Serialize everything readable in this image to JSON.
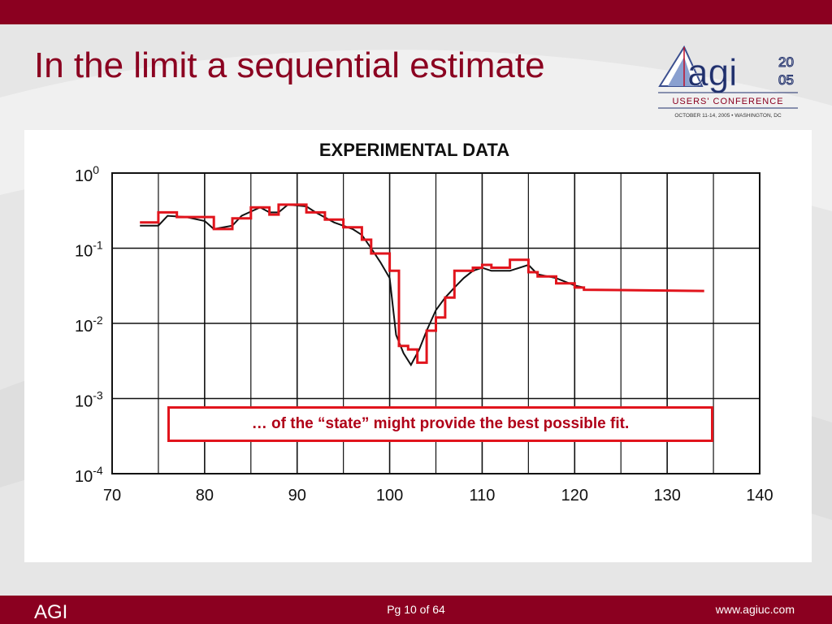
{
  "slide": {
    "title": "In the limit a sequential estimate",
    "callout": "… of the “state” might provide the best possible fit."
  },
  "logo": {
    "name": "agi",
    "year_top": "20",
    "year_bottom": "05",
    "line1": "USERS' CONFERENCE",
    "line2": "OCTOBER 11-14, 2005 • WASHINGTON, DC"
  },
  "footer": {
    "left": "AGI",
    "center": "Pg 10 of 64",
    "right": "www.agiuc.com"
  },
  "colors": {
    "brand": "#8b0020",
    "fit_line": "#e1141c",
    "data_line": "#111111"
  },
  "chart_data": {
    "type": "line",
    "title": "EXPERIMENTAL DATA",
    "xlim": [
      70,
      140
    ],
    "ylim_log10": [
      -4,
      0
    ],
    "y_scale": "log",
    "grid": true,
    "x_ticks": [
      "70",
      "80",
      "90",
      "100",
      "110",
      "120",
      "130",
      "140"
    ],
    "y_ticks": [
      {
        "base": "10",
        "exp": "0"
      },
      {
        "base": "10",
        "exp": "-1"
      },
      {
        "base": "10",
        "exp": "-2"
      },
      {
        "base": "10",
        "exp": "-3"
      },
      {
        "base": "10",
        "exp": "-4"
      }
    ],
    "series": [
      {
        "role": "experimental data",
        "x": [
          73,
          75,
          76,
          78,
          80,
          81,
          83,
          84,
          86,
          87,
          88,
          89,
          91,
          92,
          94,
          96,
          97,
          98,
          99,
          100,
          100.7,
          101.5,
          102.3,
          103.2,
          104,
          105,
          106,
          107,
          108,
          109,
          110,
          111,
          113,
          115,
          116,
          118,
          120,
          121
        ],
        "y": [
          0.2,
          0.2,
          0.27,
          0.26,
          0.23,
          0.18,
          0.2,
          0.27,
          0.35,
          0.3,
          0.3,
          0.38,
          0.36,
          0.3,
          0.22,
          0.18,
          0.15,
          0.1,
          0.065,
          0.04,
          0.007,
          0.004,
          0.0028,
          0.0045,
          0.008,
          0.015,
          0.022,
          0.03,
          0.04,
          0.05,
          0.055,
          0.05,
          0.05,
          0.06,
          0.045,
          0.04,
          0.032,
          0.03
        ]
      },
      {
        "role": "sequential estimate",
        "x": [
          73,
          75,
          75,
          77,
          77,
          81,
          81,
          83,
          83,
          85,
          85,
          87,
          87,
          88,
          88,
          91,
          91,
          93,
          93,
          95,
          95,
          97,
          97,
          98,
          98,
          100,
          100,
          101,
          101,
          102,
          102,
          103,
          103,
          104,
          104,
          105,
          105,
          106,
          106,
          107,
          107,
          109,
          109,
          110,
          110,
          111,
          111,
          113,
          113,
          115,
          115,
          116,
          116,
          118,
          118,
          120,
          120,
          121,
          121,
          134
        ],
        "y": [
          0.22,
          0.22,
          0.3,
          0.3,
          0.26,
          0.26,
          0.18,
          0.18,
          0.25,
          0.25,
          0.35,
          0.35,
          0.28,
          0.28,
          0.38,
          0.38,
          0.3,
          0.3,
          0.24,
          0.24,
          0.19,
          0.19,
          0.13,
          0.13,
          0.085,
          0.085,
          0.05,
          0.05,
          0.005,
          0.005,
          0.0045,
          0.0045,
          0.003,
          0.003,
          0.008,
          0.008,
          0.012,
          0.012,
          0.022,
          0.022,
          0.05,
          0.05,
          0.055,
          0.055,
          0.06,
          0.06,
          0.055,
          0.055,
          0.07,
          0.07,
          0.048,
          0.048,
          0.042,
          0.042,
          0.034,
          0.034,
          0.03,
          0.03,
          0.028,
          0.027
        ]
      }
    ]
  }
}
